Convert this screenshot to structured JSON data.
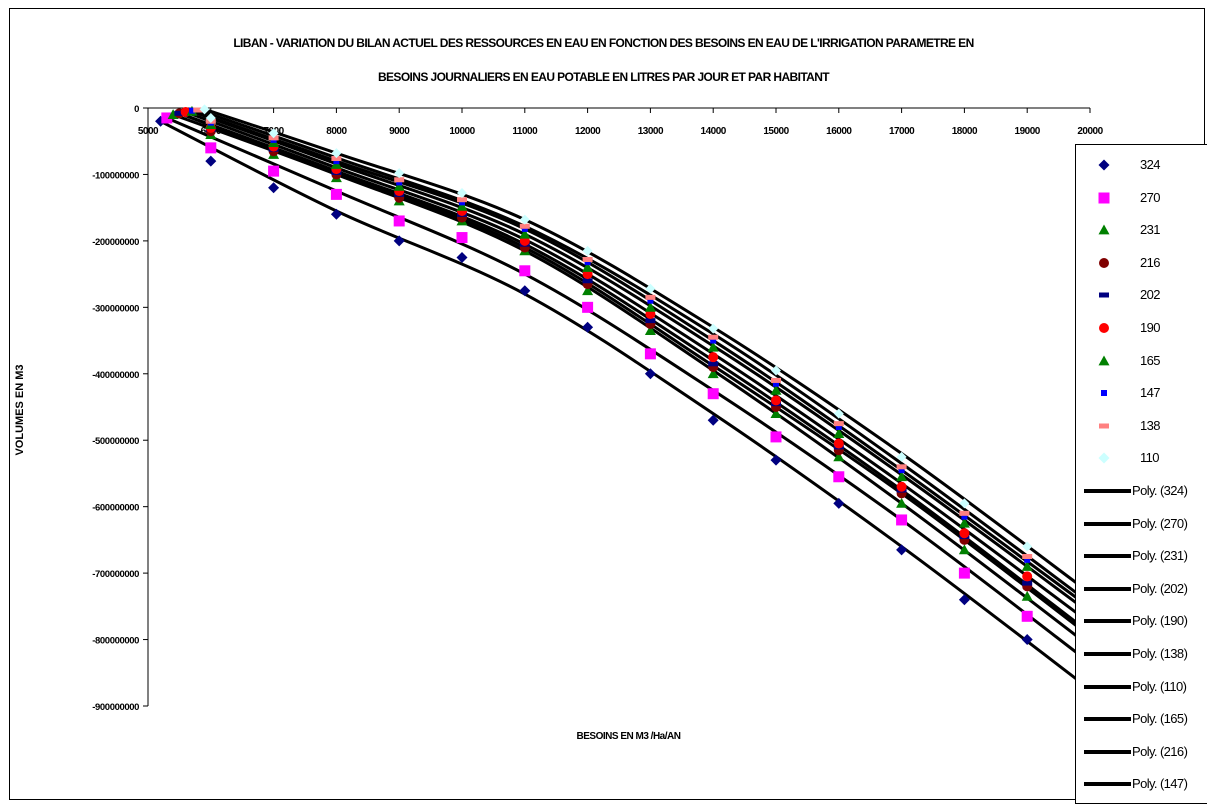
{
  "chart_data": {
    "type": "scatter",
    "title_line1": "LIBAN - VARIATION DU BILAN ACTUEL DES RESSOURCES EN EAU EN FONCTION DES BESOINS EN EAU DE L'IRRIGATION PARAMETRE EN",
    "title_line2": "BESOINS JOURNALIERS EN EAU POTABLE EN LITRES PAR JOUR ET PAR HABITANT",
    "xlabel": "BESOINS EN M3 /Ha/AN",
    "ylabel": "VOLUMES EN M3",
    "xlim": [
      5000,
      20000
    ],
    "ylim": [
      -900000000,
      0
    ],
    "x_ticks": [
      5000,
      6000,
      7000,
      8000,
      9000,
      10000,
      11000,
      12000,
      13000,
      14000,
      15000,
      16000,
      17000,
      18000,
      19000,
      20000
    ],
    "x_tick_labels": [
      "5000",
      "6000",
      "7000",
      "8000",
      "9000",
      "10000",
      "11000",
      "12000",
      "13000",
      "14000",
      "15000",
      "16000",
      "17000",
      "18000",
      "19000",
      "20000"
    ],
    "y_ticks": [
      0,
      -100000000,
      -200000000,
      -300000000,
      -400000000,
      -500000000,
      -600000000,
      -700000000,
      -800000000,
      -900000000
    ],
    "y_tick_labels": [
      "0",
      "-100000000",
      "-200000000",
      "-300000000",
      "-400000000",
      "-500000000",
      "-600000000",
      "-700000000",
      "-800000000",
      "-900000000"
    ],
    "x_axis_position": "top (crosses at y = 0)",
    "grid": false,
    "legend_position": "right",
    "series": [
      {
        "name": "324",
        "marker": "diamond",
        "color": "#000080",
        "size": 5.5,
        "x": [
          5200,
          6000,
          7000,
          8000,
          9000,
          10000,
          11000,
          12000,
          13000,
          14000,
          15000,
          16000,
          17000,
          18000,
          19000
        ],
        "y": [
          -20000000,
          -80000000,
          -120000000,
          -160000000,
          -200000000,
          -225000000,
          -275000000,
          -330000000,
          -400000000,
          -470000000,
          -530000000,
          -595000000,
          -665000000,
          -740000000,
          -800000000
        ]
      },
      {
        "name": "270",
        "marker": "square",
        "color": "#FF00FF",
        "size": 5.5,
        "x": [
          5300,
          6000,
          7000,
          8000,
          9000,
          10000,
          11000,
          12000,
          13000,
          14000,
          15000,
          16000,
          17000,
          18000,
          19000
        ],
        "y": [
          -15000000,
          -60000000,
          -95000000,
          -130000000,
          -170000000,
          -195000000,
          -245000000,
          -300000000,
          -370000000,
          -430000000,
          -495000000,
          -555000000,
          -620000000,
          -700000000,
          -765000000
        ]
      },
      {
        "name": "231",
        "marker": "triangle",
        "color": "#008000",
        "size": 5.5,
        "x": [
          5400,
          6000,
          7000,
          8000,
          9000,
          10000,
          11000,
          12000,
          13000,
          14000,
          15000,
          16000,
          17000,
          18000,
          19000
        ],
        "y": [
          -10000000,
          -40000000,
          -70000000,
          -105000000,
          -140000000,
          -170000000,
          -215000000,
          -275000000,
          -335000000,
          -400000000,
          -460000000,
          -525000000,
          -595000000,
          -665000000,
          -735000000
        ]
      },
      {
        "name": "216",
        "marker": "circle",
        "color": "#800000",
        "size": 5,
        "x": [
          5500,
          6000,
          7000,
          8000,
          9000,
          10000,
          11000,
          12000,
          13000,
          14000,
          15000,
          16000,
          17000,
          18000,
          19000
        ],
        "y": [
          -8000000,
          -35000000,
          -65000000,
          -100000000,
          -135000000,
          -165000000,
          -210000000,
          -265000000,
          -325000000,
          -390000000,
          -450000000,
          -515000000,
          -580000000,
          -650000000,
          -720000000
        ]
      },
      {
        "name": "202",
        "marker": "dash",
        "color": "#000080",
        "size": 5,
        "x": [
          5500,
          6000,
          7000,
          8000,
          9000,
          10000,
          11000,
          12000,
          13000,
          14000,
          15000,
          16000,
          17000,
          18000,
          19000
        ],
        "y": [
          -8000000,
          -32000000,
          -62000000,
          -97000000,
          -130000000,
          -160000000,
          -205000000,
          -260000000,
          -320000000,
          -385000000,
          -445000000,
          -510000000,
          -575000000,
          -645000000,
          -715000000
        ]
      },
      {
        "name": "190",
        "marker": "circle",
        "color": "#FF0000",
        "size": 5,
        "x": [
          5600,
          6000,
          7000,
          8000,
          9000,
          10000,
          11000,
          12000,
          13000,
          14000,
          15000,
          16000,
          17000,
          18000,
          19000
        ],
        "y": [
          -6000000,
          -30000000,
          -58000000,
          -92000000,
          -125000000,
          -155000000,
          -200000000,
          -250000000,
          -310000000,
          -375000000,
          -440000000,
          -505000000,
          -570000000,
          -640000000,
          -705000000
        ]
      },
      {
        "name": "165",
        "marker": "triangle",
        "color": "#008000",
        "size": 5.5,
        "x": [
          5700,
          6000,
          7000,
          8000,
          9000,
          10000,
          11000,
          12000,
          13000,
          14000,
          15000,
          16000,
          17000,
          18000,
          19000
        ],
        "y": [
          -5000000,
          -25000000,
          -52000000,
          -85000000,
          -118000000,
          -148000000,
          -190000000,
          -240000000,
          -300000000,
          -360000000,
          -425000000,
          -490000000,
          -555000000,
          -625000000,
          -690000000
        ]
      },
      {
        "name": "147",
        "marker": "smallsquare",
        "color": "#0000FF",
        "size": 3,
        "x": [
          5700,
          6000,
          7000,
          8000,
          9000,
          10000,
          11000,
          12000,
          13000,
          14000,
          15000,
          16000,
          17000,
          18000,
          19000
        ],
        "y": [
          -4000000,
          -22000000,
          -48000000,
          -80000000,
          -112000000,
          -142000000,
          -182000000,
          -232000000,
          -290000000,
          -350000000,
          -415000000,
          -480000000,
          -545000000,
          -615000000,
          -680000000
        ]
      },
      {
        "name": "138",
        "marker": "dash",
        "color": "#FF8080",
        "size": 5,
        "x": [
          5800,
          6000,
          7000,
          8000,
          9000,
          10000,
          11000,
          12000,
          13000,
          14000,
          15000,
          16000,
          17000,
          18000,
          19000
        ],
        "y": [
          -3000000,
          -20000000,
          -45000000,
          -76000000,
          -108000000,
          -138000000,
          -178000000,
          -228000000,
          -285000000,
          -345000000,
          -410000000,
          -475000000,
          -540000000,
          -610000000,
          -675000000
        ]
      },
      {
        "name": "110",
        "marker": "diamond",
        "color": "#CCFFFF",
        "size": 5,
        "x": [
          5900,
          6000,
          7000,
          8000,
          9000,
          10000,
          11000,
          12000,
          13000,
          14000,
          15000,
          16000,
          17000,
          18000,
          19000
        ],
        "y": [
          -2000000,
          -15000000,
          -38000000,
          -68000000,
          -98000000,
          -128000000,
          -168000000,
          -215000000,
          -272000000,
          -332000000,
          -395000000,
          -460000000,
          -525000000,
          -595000000,
          -660000000
        ]
      }
    ],
    "trendlines": [
      {
        "name": "Poly. (324)",
        "color": "#000000",
        "x": [
          5200,
          8000,
          11000,
          14000,
          17000,
          20000
        ],
        "y": [
          -20000000,
          -155000000,
          -280000000,
          -460000000,
          -660000000,
          -875000000
        ]
      },
      {
        "name": "Poly. (270)",
        "color": "#000000",
        "x": [
          5300,
          8000,
          11000,
          14000,
          17000,
          20000
        ],
        "y": [
          -15000000,
          -125000000,
          -250000000,
          -425000000,
          -620000000,
          -835000000
        ]
      },
      {
        "name": "Poly. (231)",
        "color": "#000000",
        "x": [
          5400,
          8000,
          11000,
          14000,
          17000,
          20000
        ],
        "y": [
          -10000000,
          -100000000,
          -215000000,
          -395000000,
          -595000000,
          -810000000
        ]
      },
      {
        "name": "Poly. (202)",
        "color": "#000000",
        "x": [
          5500,
          8000,
          11000,
          14000,
          17000,
          20000
        ],
        "y": [
          -8000000,
          -95000000,
          -205000000,
          -380000000,
          -575000000,
          -790000000
        ]
      },
      {
        "name": "Poly. (190)",
        "color": "#000000",
        "x": [
          5600,
          8000,
          11000,
          14000,
          17000,
          20000
        ],
        "y": [
          -6000000,
          -90000000,
          -198000000,
          -370000000,
          -565000000,
          -775000000
        ]
      },
      {
        "name": "Poly. (138)",
        "color": "#000000",
        "x": [
          5800,
          8000,
          11000,
          14000,
          17000,
          20000
        ],
        "y": [
          -3000000,
          -75000000,
          -178000000,
          -340000000,
          -535000000,
          -745000000
        ]
      },
      {
        "name": "Poly. (110)",
        "color": "#000000",
        "x": [
          5900,
          8000,
          11000,
          14000,
          17000,
          20000
        ],
        "y": [
          -2000000,
          -68000000,
          -168000000,
          -330000000,
          -520000000,
          -730000000
        ]
      },
      {
        "name": "Poly. (165)",
        "color": "#000000",
        "x": [
          5700,
          8000,
          11000,
          14000,
          17000,
          20000
        ],
        "y": [
          -5000000,
          -84000000,
          -190000000,
          -358000000,
          -552000000,
          -760000000
        ]
      },
      {
        "name": "Poly. (216)",
        "color": "#000000",
        "x": [
          5500,
          8000,
          11000,
          14000,
          17000,
          20000
        ],
        "y": [
          -8000000,
          -98000000,
          -210000000,
          -388000000,
          -580000000,
          -795000000
        ]
      },
      {
        "name": "Poly. (147)",
        "color": "#000000",
        "x": [
          5700,
          8000,
          11000,
          14000,
          17000,
          20000
        ],
        "y": [
          -4000000,
          -80000000,
          -182000000,
          -350000000,
          -545000000,
          -752000000
        ]
      }
    ]
  }
}
